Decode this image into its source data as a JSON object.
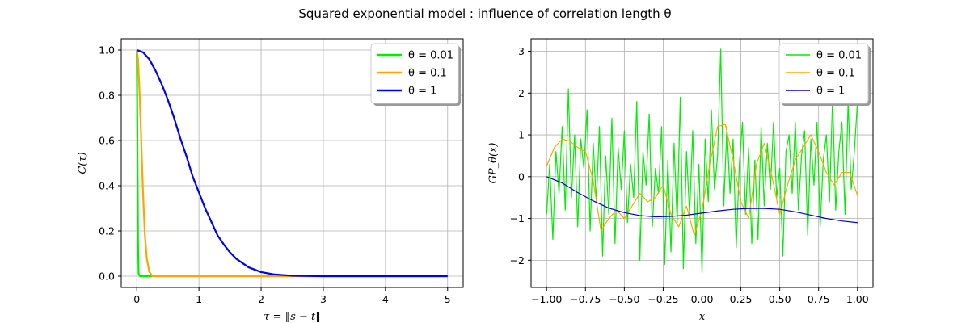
{
  "figure": {
    "suptitle": "Squared exponential model : influence of correlation length θ"
  },
  "chart_data": [
    {
      "type": "line",
      "xlabel": "τ = ‖s − t‖",
      "ylabel": "C(τ)",
      "xlim": [
        -0.25,
        5.25
      ],
      "ylim": [
        -0.05,
        1.05
      ],
      "xticks": [
        0,
        1,
        2,
        3,
        4,
        5
      ],
      "yticks": [
        0.0,
        0.2,
        0.4,
        0.6,
        0.8,
        1.0
      ],
      "xtick_labels": [
        "0",
        "1",
        "2",
        "3",
        "4",
        "5"
      ],
      "ytick_labels": [
        "0.0",
        "0.2",
        "0.4",
        "0.6",
        "0.8",
        "1.0"
      ],
      "grid": true,
      "legend": "top-right",
      "series": [
        {
          "name": "θ = 0.01",
          "color": "#00ee00",
          "x": [
            0,
            0.01,
            0.02,
            0.03,
            0.05,
            0.1,
            5
          ],
          "y": [
            1,
            0.6,
            0.14,
            0.01,
            0,
            0,
            0
          ]
        },
        {
          "name": "θ = 0.1",
          "color": "#ffa500",
          "x": [
            0,
            0.02,
            0.05,
            0.08,
            0.1,
            0.13,
            0.16,
            0.2,
            0.25,
            0.3,
            5
          ],
          "y": [
            1,
            0.96,
            0.78,
            0.53,
            0.37,
            0.18,
            0.08,
            0.02,
            0,
            0,
            0
          ]
        },
        {
          "name": "θ = 1",
          "color": "#0000ee",
          "x": [
            0,
            0.1,
            0.2,
            0.3,
            0.4,
            0.5,
            0.6,
            0.7,
            0.8,
            0.9,
            1.0,
            1.1,
            1.2,
            1.3,
            1.4,
            1.5,
            1.6,
            1.8,
            2.0,
            2.2,
            2.5,
            3.0,
            5.0
          ],
          "y": [
            1,
            0.99,
            0.96,
            0.91,
            0.85,
            0.78,
            0.7,
            0.61,
            0.53,
            0.44,
            0.37,
            0.3,
            0.24,
            0.18,
            0.14,
            0.105,
            0.077,
            0.039,
            0.018,
            0.008,
            0.002,
            0,
            0
          ]
        }
      ]
    },
    {
      "type": "line",
      "xlabel": "x",
      "ylabel": "GP_θ(x)",
      "xlim": [
        -1.1,
        1.1
      ],
      "ylim": [
        -2.65,
        3.3
      ],
      "xticks": [
        -1.0,
        -0.75,
        -0.5,
        -0.25,
        0.0,
        0.25,
        0.5,
        0.75,
        1.0
      ],
      "yticks": [
        -2,
        -1,
        0,
        1,
        2,
        3
      ],
      "xtick_labels": [
        "−1.00",
        "−0.75",
        "−0.50",
        "−0.25",
        "0.00",
        "0.25",
        "0.50",
        "0.75",
        "1.00"
      ],
      "ytick_labels": [
        "−2",
        "−1",
        "0",
        "1",
        "2",
        "3"
      ],
      "grid": true,
      "legend": "top-right",
      "series": [
        {
          "name": "θ = 0.01",
          "color": "#00ee00",
          "x": [
            -1.0,
            -0.98,
            -0.96,
            -0.94,
            -0.92,
            -0.9,
            -0.88,
            -0.86,
            -0.84,
            -0.82,
            -0.8,
            -0.78,
            -0.76,
            -0.74,
            -0.72,
            -0.7,
            -0.68,
            -0.66,
            -0.64,
            -0.62,
            -0.6,
            -0.58,
            -0.56,
            -0.54,
            -0.52,
            -0.5,
            -0.48,
            -0.46,
            -0.44,
            -0.42,
            -0.4,
            -0.38,
            -0.36,
            -0.34,
            -0.32,
            -0.3,
            -0.28,
            -0.26,
            -0.24,
            -0.22,
            -0.2,
            -0.18,
            -0.16,
            -0.14,
            -0.12,
            -0.1,
            -0.08,
            -0.06,
            -0.04,
            -0.02,
            0.0,
            0.02,
            0.04,
            0.06,
            0.08,
            0.1,
            0.12,
            0.14,
            0.16,
            0.18,
            0.2,
            0.22,
            0.24,
            0.26,
            0.28,
            0.3,
            0.32,
            0.34,
            0.36,
            0.38,
            0.4,
            0.42,
            0.44,
            0.46,
            0.48,
            0.5,
            0.52,
            0.54,
            0.56,
            0.58,
            0.6,
            0.62,
            0.64,
            0.66,
            0.68,
            0.7,
            0.72,
            0.74,
            0.76,
            0.78,
            0.8,
            0.82,
            0.84,
            0.86,
            0.88,
            0.9,
            0.92,
            0.94,
            0.96,
            0.98,
            1.0
          ],
          "y": [
            -0.9,
            0.3,
            -1.5,
            0.6,
            -0.4,
            1.2,
            -0.8,
            2.1,
            -0.5,
            1.0,
            -1.2,
            0.9,
            0.2,
            1.6,
            -1.3,
            0.8,
            -0.6,
            1.2,
            -1.9,
            0.5,
            -0.9,
            1.4,
            -1.6,
            0.7,
            -0.3,
            1.1,
            -1.1,
            0.3,
            -0.5,
            1.8,
            -2.0,
            0.6,
            -0.2,
            1.5,
            -1.2,
            0.2,
            -0.4,
            1.2,
            -2.1,
            0.4,
            -1.8,
            0.8,
            -1.1,
            1.9,
            -2.2,
            0.6,
            -0.9,
            1.1,
            -1.6,
            0.3,
            -2.3,
            0.9,
            -0.6,
            1.6,
            -0.3,
            0.5,
            3.05,
            -0.7,
            1.2,
            -0.4,
            0.9,
            -1.7,
            0.3,
            1.3,
            -0.9,
            0.7,
            -1.6,
            0.4,
            -1.5,
            1.2,
            -0.7,
            0.8,
            -0.3,
            1.3,
            -0.5,
            0.2,
            -1.9,
            0.6,
            1.0,
            -0.4,
            1.3,
            -0.8,
            0.5,
            1.1,
            -1.4,
            0.9,
            -0.2,
            1.3,
            -1.2,
            0.4,
            1.0,
            -0.6,
            1.9,
            -0.8,
            0.6,
            1.3,
            -0.9,
            1.8,
            -0.3,
            0.6,
            1.8
          ]
        },
        {
          "name": "θ = 0.1",
          "color": "#ffa500",
          "x": [
            -1.0,
            -0.95,
            -0.9,
            -0.85,
            -0.8,
            -0.75,
            -0.7,
            -0.65,
            -0.6,
            -0.55,
            -0.5,
            -0.45,
            -0.4,
            -0.35,
            -0.3,
            -0.25,
            -0.2,
            -0.15,
            -0.1,
            -0.05,
            0.0,
            0.05,
            0.1,
            0.15,
            0.2,
            0.25,
            0.3,
            0.35,
            0.4,
            0.45,
            0.5,
            0.55,
            0.6,
            0.65,
            0.7,
            0.75,
            0.8,
            0.85,
            0.9,
            0.95,
            1.0
          ],
          "y": [
            0.25,
            0.7,
            0.9,
            0.85,
            0.7,
            0.6,
            -0.1,
            -1.3,
            -1.0,
            -0.8,
            -1.0,
            -0.7,
            -0.4,
            -0.6,
            -0.5,
            -0.2,
            -0.9,
            -1.2,
            -0.7,
            -1.4,
            -0.8,
            0.3,
            1.2,
            1.25,
            0.4,
            -0.6,
            -1.0,
            0.3,
            0.8,
            0.0,
            -0.9,
            -0.2,
            0.4,
            0.7,
            1.0,
            0.6,
            0.1,
            -0.2,
            0.1,
            0.1,
            -0.45
          ]
        },
        {
          "name": "θ = 1",
          "color": "#0000cc",
          "x": [
            -1.0,
            -0.9,
            -0.8,
            -0.7,
            -0.6,
            -0.5,
            -0.4,
            -0.3,
            -0.2,
            -0.1,
            0.0,
            0.1,
            0.2,
            0.3,
            0.4,
            0.5,
            0.6,
            0.7,
            0.8,
            0.9,
            1.0
          ],
          "y": [
            0.0,
            -0.15,
            -0.38,
            -0.58,
            -0.75,
            -0.86,
            -0.93,
            -0.96,
            -0.95,
            -0.92,
            -0.87,
            -0.82,
            -0.78,
            -0.76,
            -0.76,
            -0.78,
            -0.84,
            -0.92,
            -1.0,
            -1.06,
            -1.1
          ]
        }
      ]
    }
  ]
}
